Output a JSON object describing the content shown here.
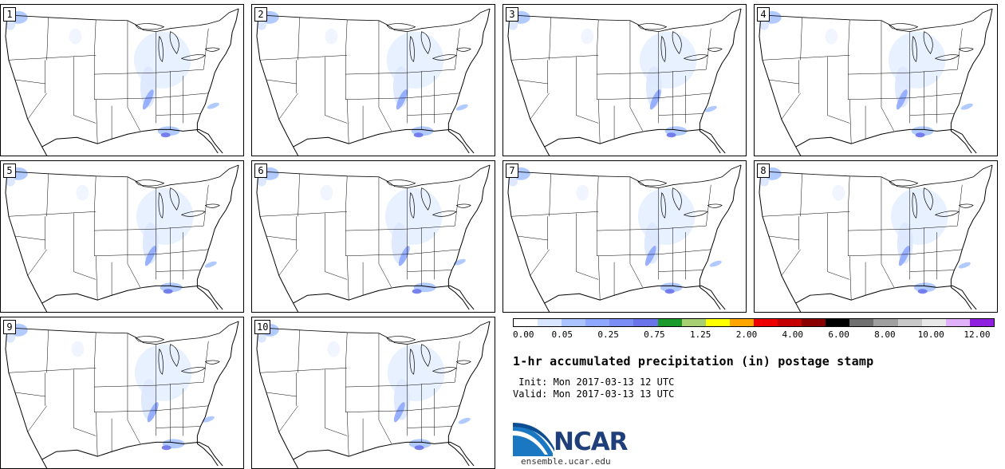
{
  "panels": [
    {
      "label": "1"
    },
    {
      "label": "2"
    },
    {
      "label": "3"
    },
    {
      "label": "4"
    },
    {
      "label": "5"
    },
    {
      "label": "6"
    },
    {
      "label": "7"
    },
    {
      "label": "8"
    },
    {
      "label": "9"
    },
    {
      "label": "10"
    }
  ],
  "legend": {
    "colors": [
      "#ffffff",
      "#d9e6ff",
      "#a9c4ff",
      "#8fa8ff",
      "#7a8ef5",
      "#6a74ea",
      "#1a9a2a",
      "#a9cf73",
      "#ffff00",
      "#ffa500",
      "#ee0000",
      "#c40000",
      "#8a0000",
      "#000000",
      "#707070",
      "#a0a0a0",
      "#c8c8c8",
      "#e8e8e8",
      "#e0b0f8",
      "#9020e0"
    ],
    "ticks": [
      "0.00",
      "0.05",
      "0.25",
      "0.75",
      "1.25",
      "2.00",
      "4.00",
      "6.00",
      "8.00",
      "10.00",
      "12.00"
    ]
  },
  "title": "1-hr accumulated precipitation (in) postage stamp",
  "init": " Init: Mon 2017-03-13 12 UTC",
  "valid": "Valid: Mon 2017-03-13 13 UTC",
  "logo": {
    "name": "NCAR",
    "url": "ensemble.ucar.edu"
  }
}
